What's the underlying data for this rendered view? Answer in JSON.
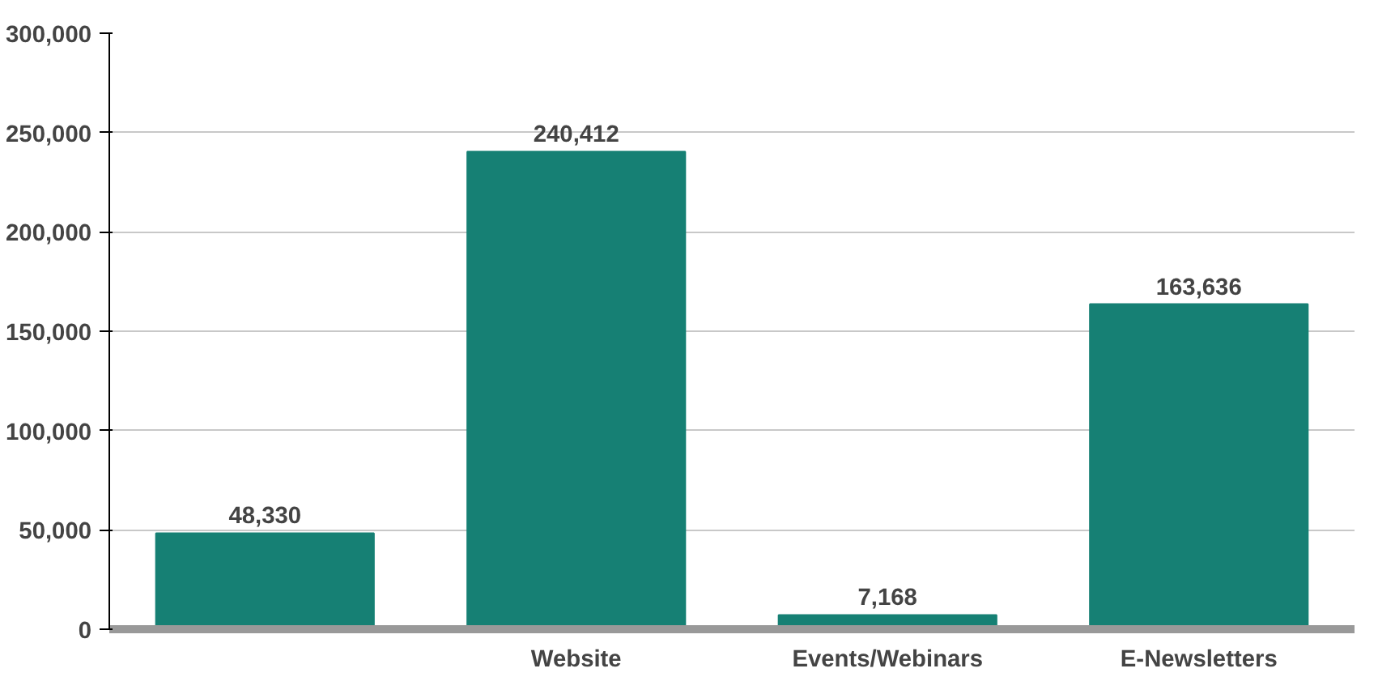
{
  "chart_data": {
    "type": "bar",
    "categories": [
      null,
      "Website",
      "Events/Webinars",
      "E-Newsletters"
    ],
    "values": [
      48330,
      240412,
      7168,
      163636
    ],
    "color": "#168074",
    "ylim": [
      0,
      300000
    ],
    "yticks": [
      {
        "value": 0,
        "label": "0"
      },
      {
        "value": 50000,
        "label": "50,000"
      },
      {
        "value": 100000,
        "label": "100,000"
      },
      {
        "value": 150000,
        "label": "150,000"
      },
      {
        "value": 200000,
        "label": "200,000"
      },
      {
        "value": 250000,
        "label": "250,000"
      },
      {
        "value": 300000,
        "label": "300,000"
      }
    ],
    "value_labels": [
      "48,330",
      "240,412",
      "7,168",
      "163,636"
    ],
    "grid": "y"
  }
}
